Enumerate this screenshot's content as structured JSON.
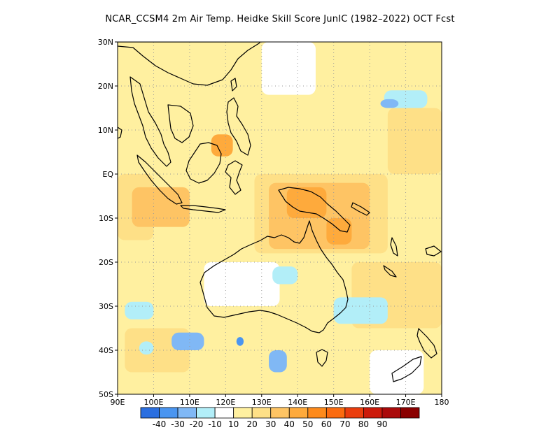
{
  "title": "NCAR_CCSM4  2m Air Temp. Heidke Skill Score JunIC (1982–2022) OCT Fcst",
  "map": {
    "lon_range": [
      90,
      180
    ],
    "lat_range": [
      -50,
      30
    ],
    "lon_ticks": [
      {
        "value": 90,
        "label": "90E"
      },
      {
        "value": 100,
        "label": "100E"
      },
      {
        "value": 110,
        "label": "110E"
      },
      {
        "value": 120,
        "label": "120E"
      },
      {
        "value": 130,
        "label": "130E"
      },
      {
        "value": 140,
        "label": "140E"
      },
      {
        "value": 150,
        "label": "150E"
      },
      {
        "value": 160,
        "label": "160E"
      },
      {
        "value": 170,
        "label": "170E"
      },
      {
        "value": 180,
        "label": "180"
      }
    ],
    "lat_ticks": [
      {
        "value": 30,
        "label": "30N"
      },
      {
        "value": 20,
        "label": "20N"
      },
      {
        "value": 10,
        "label": "10N"
      },
      {
        "value": 0,
        "label": "EQ"
      },
      {
        "value": -10,
        "label": "10S"
      },
      {
        "value": -20,
        "label": "20S"
      },
      {
        "value": -30,
        "label": "30S"
      },
      {
        "value": -40,
        "label": "40S"
      },
      {
        "value": -50,
        "label": "50S"
      }
    ],
    "grid": "dotted",
    "skill_regions": [
      {
        "level": 10,
        "lon": [
          90,
          180
        ],
        "lat": [
          -50,
          30
        ]
      },
      {
        "level": 20,
        "lon": [
          90,
          100
        ],
        "lat": [
          -15,
          0
        ]
      },
      {
        "level": 20,
        "lon": [
          128,
          165
        ],
        "lat": [
          -18,
          0
        ]
      },
      {
        "level": 20,
        "lon": [
          92,
          110
        ],
        "lat": [
          -45,
          -35
        ]
      },
      {
        "level": 20,
        "lon": [
          155,
          180
        ],
        "lat": [
          -35,
          -20
        ]
      },
      {
        "level": 20,
        "lon": [
          165,
          180
        ],
        "lat": [
          0,
          15
        ]
      },
      {
        "level": 30,
        "lon": [
          94,
          110
        ],
        "lat": [
          -12,
          -3
        ]
      },
      {
        "level": 30,
        "lon": [
          132,
          160
        ],
        "lat": [
          -17,
          -2
        ]
      },
      {
        "level": 40,
        "lon": [
          137,
          148
        ],
        "lat": [
          -10,
          -3
        ]
      },
      {
        "level": 40,
        "lon": [
          148,
          155
        ],
        "lat": [
          -16,
          -10
        ]
      },
      {
        "level": 40,
        "lon": [
          116,
          122
        ],
        "lat": [
          4,
          9
        ]
      },
      {
        "level": 0,
        "lon": [
          114,
          135
        ],
        "lat": [
          -30,
          -20
        ]
      },
      {
        "level": 0,
        "lon": [
          130,
          145
        ],
        "lat": [
          18,
          30
        ]
      },
      {
        "level": 0,
        "lon": [
          160,
          175
        ],
        "lat": [
          -50,
          -40
        ]
      },
      {
        "level": -10,
        "lon": [
          133,
          140
        ],
        "lat": [
          -25,
          -21
        ]
      },
      {
        "level": -10,
        "lon": [
          150,
          165
        ],
        "lat": [
          -34,
          -28
        ]
      },
      {
        "level": -10,
        "lon": [
          92,
          100
        ],
        "lat": [
          -33,
          -29
        ]
      },
      {
        "level": -10,
        "lon": [
          164,
          176
        ],
        "lat": [
          15,
          19
        ]
      },
      {
        "level": -10,
        "lon": [
          96,
          100
        ],
        "lat": [
          -41,
          -38
        ]
      },
      {
        "level": -20,
        "lon": [
          105,
          114
        ],
        "lat": [
          -40,
          -36
        ]
      },
      {
        "level": -20,
        "lon": [
          132,
          137
        ],
        "lat": [
          -45,
          -40
        ]
      },
      {
        "level": -20,
        "lon": [
          163,
          168
        ],
        "lat": [
          15,
          17
        ]
      },
      {
        "level": -30,
        "lon": [
          123,
          125
        ],
        "lat": [
          -39,
          -37
        ]
      }
    ]
  },
  "colorbar": {
    "colors": [
      "#2b6fe0",
      "#4a95f0",
      "#80b8f5",
      "#b2eef8",
      "#ffffff",
      "#fff0a0",
      "#fee087",
      "#fec464",
      "#feaa3c",
      "#fd8a1b",
      "#fb6b0f",
      "#ea3d0d",
      "#cc1a0a",
      "#aa0a0a",
      "#8a0000"
    ],
    "labels": [
      "-40",
      "-30",
      "-20",
      "-10",
      "10",
      "20",
      "30",
      "40",
      "50",
      "60",
      "70",
      "80",
      "90"
    ]
  },
  "level_colors": {
    "-40": "#2b6fe0",
    "-30": "#4a95f0",
    "-20": "#80b8f5",
    "-10": "#b2eef8",
    "0": "#ffffff",
    "10": "#fff0a0",
    "20": "#fee087",
    "30": "#fec464",
    "40": "#feaa3c",
    "50": "#fd8a1b"
  }
}
